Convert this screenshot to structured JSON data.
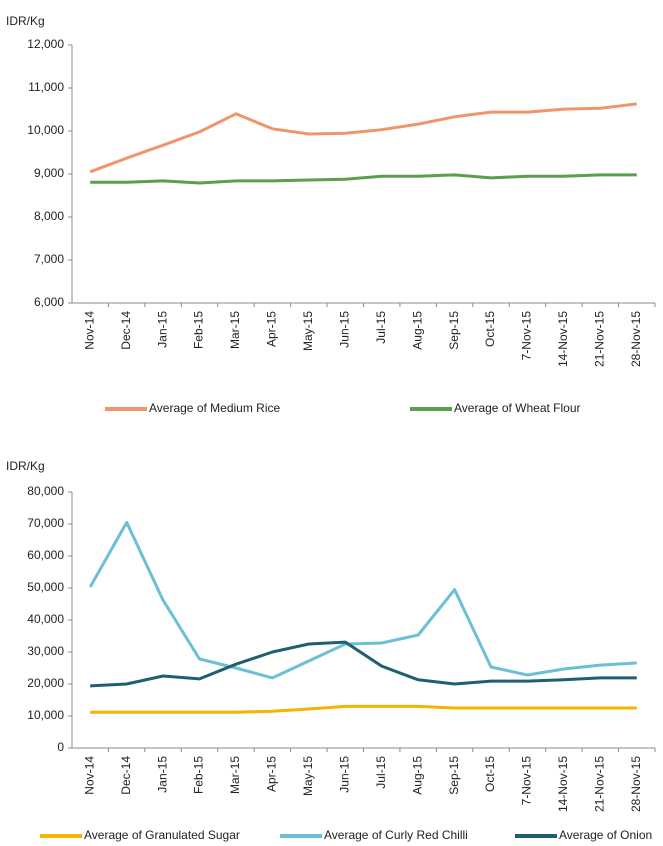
{
  "chart_data": [
    {
      "type": "line",
      "y_label": "IDR/Kg",
      "categories": [
        "Nov-14",
        "Dec-14",
        "Jan-15",
        "Feb-15",
        "Mar-15",
        "Apr-15",
        "May-15",
        "Jun-15",
        "Jul-15",
        "Aug-15",
        "Sep-15",
        "Oct-15",
        "7-Nov-15",
        "14-Nov-15",
        "21-Nov-15",
        "28-Nov-15"
      ],
      "series": [
        {
          "name": "Average of Medium Rice",
          "color": "#f0956a",
          "values": [
            9050,
            9370,
            9670,
            9980,
            10400,
            10050,
            9930,
            9950,
            10030,
            10160,
            10330,
            10440,
            10440,
            10510,
            10530,
            10630
          ]
        },
        {
          "name": "Average of Wheat Flour",
          "color": "#5a9e4e",
          "values": [
            8810,
            8810,
            8840,
            8790,
            8840,
            8840,
            8860,
            8880,
            8950,
            8950,
            8980,
            8910,
            8950,
            8950,
            8980,
            8980
          ]
        }
      ],
      "ylim": [
        6000,
        12000
      ],
      "yticks": [
        {
          "value": 6000,
          "label": "6,000"
        },
        {
          "value": 7000,
          "label": "7,000"
        },
        {
          "value": 8000,
          "label": "8,000"
        },
        {
          "value": 9000,
          "label": "9,000"
        },
        {
          "value": 10000,
          "label": "10,000"
        },
        {
          "value": 11000,
          "label": "11,000"
        },
        {
          "value": 12000,
          "label": "12,000"
        }
      ],
      "grid": false
    },
    {
      "type": "line",
      "y_label": "IDR/Kg",
      "categories": [
        "Nov-14",
        "Dec-14",
        "Jan-15",
        "Feb-15",
        "Mar-15",
        "Apr-15",
        "May-15",
        "Jun-15",
        "Jul-15",
        "Aug-15",
        "Sep-15",
        "Oct-15",
        "7-Nov-15",
        "14-Nov-15",
        "21-Nov-15",
        "28-Nov-15"
      ],
      "series": [
        {
          "name": "Average of Granulated Sugar",
          "color": "#f5b400",
          "values": [
            11200,
            11200,
            11200,
            11200,
            11200,
            11500,
            12200,
            13000,
            13000,
            13000,
            12500,
            12500,
            12500,
            12500,
            12500,
            12500
          ]
        },
        {
          "name": "Average of Curly Red Chilli",
          "color": "#6cbfd6",
          "values": [
            50300,
            70500,
            46200,
            27800,
            25000,
            21900,
            27200,
            32500,
            32800,
            35300,
            49500,
            25300,
            22800,
            24700,
            25900,
            26600
          ]
        },
        {
          "name": "Average of Onion",
          "color": "#1f6070",
          "values": [
            19400,
            20000,
            22500,
            21600,
            26200,
            30000,
            32500,
            33100,
            25600,
            21300,
            20000,
            20900,
            20900,
            21300,
            21900,
            21900
          ]
        }
      ],
      "ylim": [
        0,
        80000
      ],
      "yticks": [
        0,
        {
          "value": 10000,
          "label": "10,000"
        },
        {
          "value": 20000,
          "label": "20,000"
        },
        {
          "value": 30000,
          "label": "30,000"
        },
        {
          "value": 40000,
          "label": "40,000"
        },
        {
          "value": 50000,
          "label": "50,000"
        },
        {
          "value": 60000,
          "label": "60,000"
        },
        {
          "value": 70000,
          "label": "70,000"
        },
        {
          "value": 80000,
          "label": "80,000"
        }
      ],
      "grid": false
    }
  ]
}
